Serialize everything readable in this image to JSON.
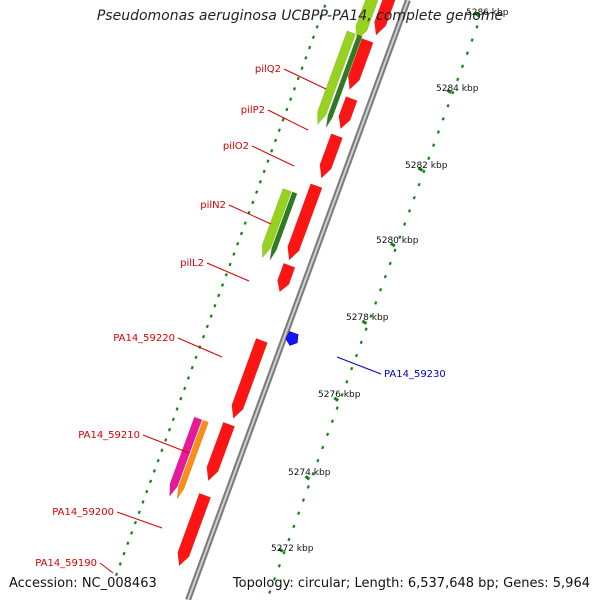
{
  "title": "Pseudomonas aeruginosa UCBPP-PA14, complete genome",
  "footer": {
    "accession": "Accession: NC_008463",
    "info": "Topology: circular; Length: 6,537,648 bp; Genes: 5,964"
  },
  "colors": {
    "backbone": "#9a9a9a",
    "gene_main": "#ff1414",
    "gene_green": "#96d21e",
    "gene_green_dark": "#2d7d1e",
    "gene_magenta": "#e6199b",
    "gene_orange": "#ff8c14",
    "gene_highlight": "#1414ff",
    "label_red": "#d70000",
    "label_blue": "#0000cc",
    "tick_green": "#148214"
  },
  "scale_ticks": [
    {
      "label": "5272 kbp"
    },
    {
      "label": "5274 kbp"
    },
    {
      "label": "5276 kbp"
    },
    {
      "label": "5278 kbp"
    },
    {
      "label": "5280 kbp"
    },
    {
      "label": "5282 kbp"
    },
    {
      "label": "5284 kbp"
    },
    {
      "label": "5286 kbp"
    }
  ],
  "gene_labels": [
    {
      "text": "pilQ2"
    },
    {
      "text": "pilP2"
    },
    {
      "text": "pilO2"
    },
    {
      "text": "pilN2"
    },
    {
      "text": "pilL2"
    },
    {
      "text": "PA14_59220"
    },
    {
      "text": "PA14_59210"
    },
    {
      "text": "PA14_59200"
    },
    {
      "text": "PA14_59190"
    },
    {
      "text": "PA14_59230"
    }
  ]
}
